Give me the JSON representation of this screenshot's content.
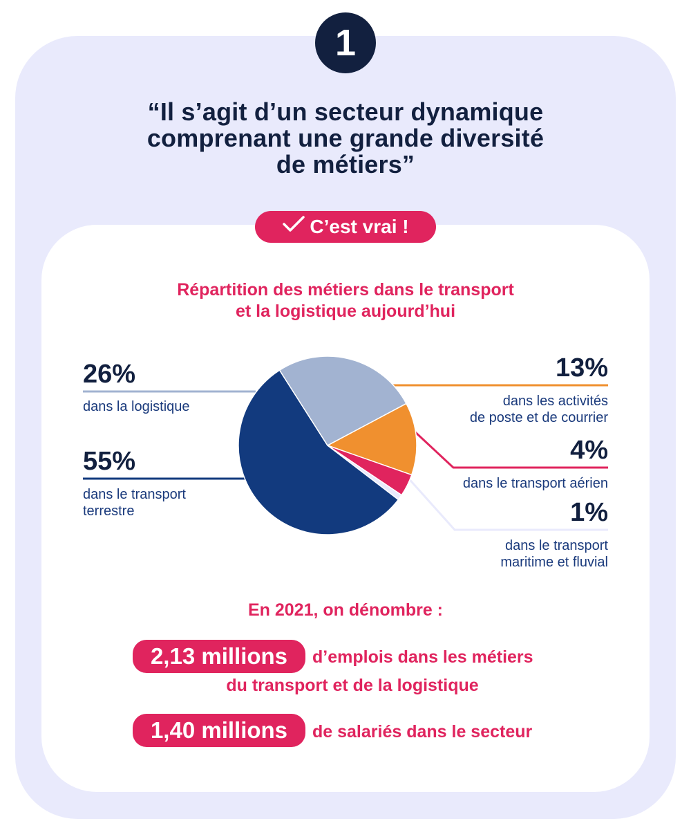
{
  "badge": {
    "number": "1"
  },
  "quote": {
    "line1": "“Il s’agit d’un secteur dynamique",
    "line2": "comprenant une grande diversité",
    "line3": "de métiers”"
  },
  "verdict": {
    "label": "C’est vrai !"
  },
  "chart_title": {
    "line1": "Répartition des métiers dans le transport",
    "line2": "et la logistique aujourd’hui"
  },
  "chart_data": {
    "type": "pie",
    "title": "Répartition des métiers dans le transport et la logistique aujourd’hui",
    "slices": [
      {
        "label": "dans les activités de poste et de courrier",
        "label_lines": [
          "dans les activités",
          "de poste et de courrier"
        ],
        "value": 13,
        "display": "13%",
        "color": "#f0902f"
      },
      {
        "label": "dans le transport aérien",
        "label_lines": [
          "dans le transport aérien"
        ],
        "value": 4,
        "display": "4%",
        "color": "#e0245e"
      },
      {
        "label": "dans le transport maritime et fluvial",
        "label_lines": [
          "dans le transport",
          "maritime et fluvial"
        ],
        "value": 1,
        "display": "1%",
        "color": "#e9eafc"
      },
      {
        "label": "dans le transport terrestre",
        "label_lines": [
          "dans le transport",
          "terrestre"
        ],
        "value": 55,
        "display": "55%",
        "color": "#123a7e"
      },
      {
        "label": "dans la logistique",
        "label_lines": [
          "dans la logistique"
        ],
        "value": 26,
        "display": "26%",
        "color": "#a2b3d1"
      }
    ]
  },
  "stats": {
    "intro": "En 2021, on dénombre :",
    "items": [
      {
        "value": "2,13 millions",
        "text_line1": "d’emplois dans les métiers",
        "text_line2": "du transport et de la logistique"
      },
      {
        "value": "1,40 millions",
        "text_line1": "de salariés dans le secteur"
      }
    ]
  }
}
